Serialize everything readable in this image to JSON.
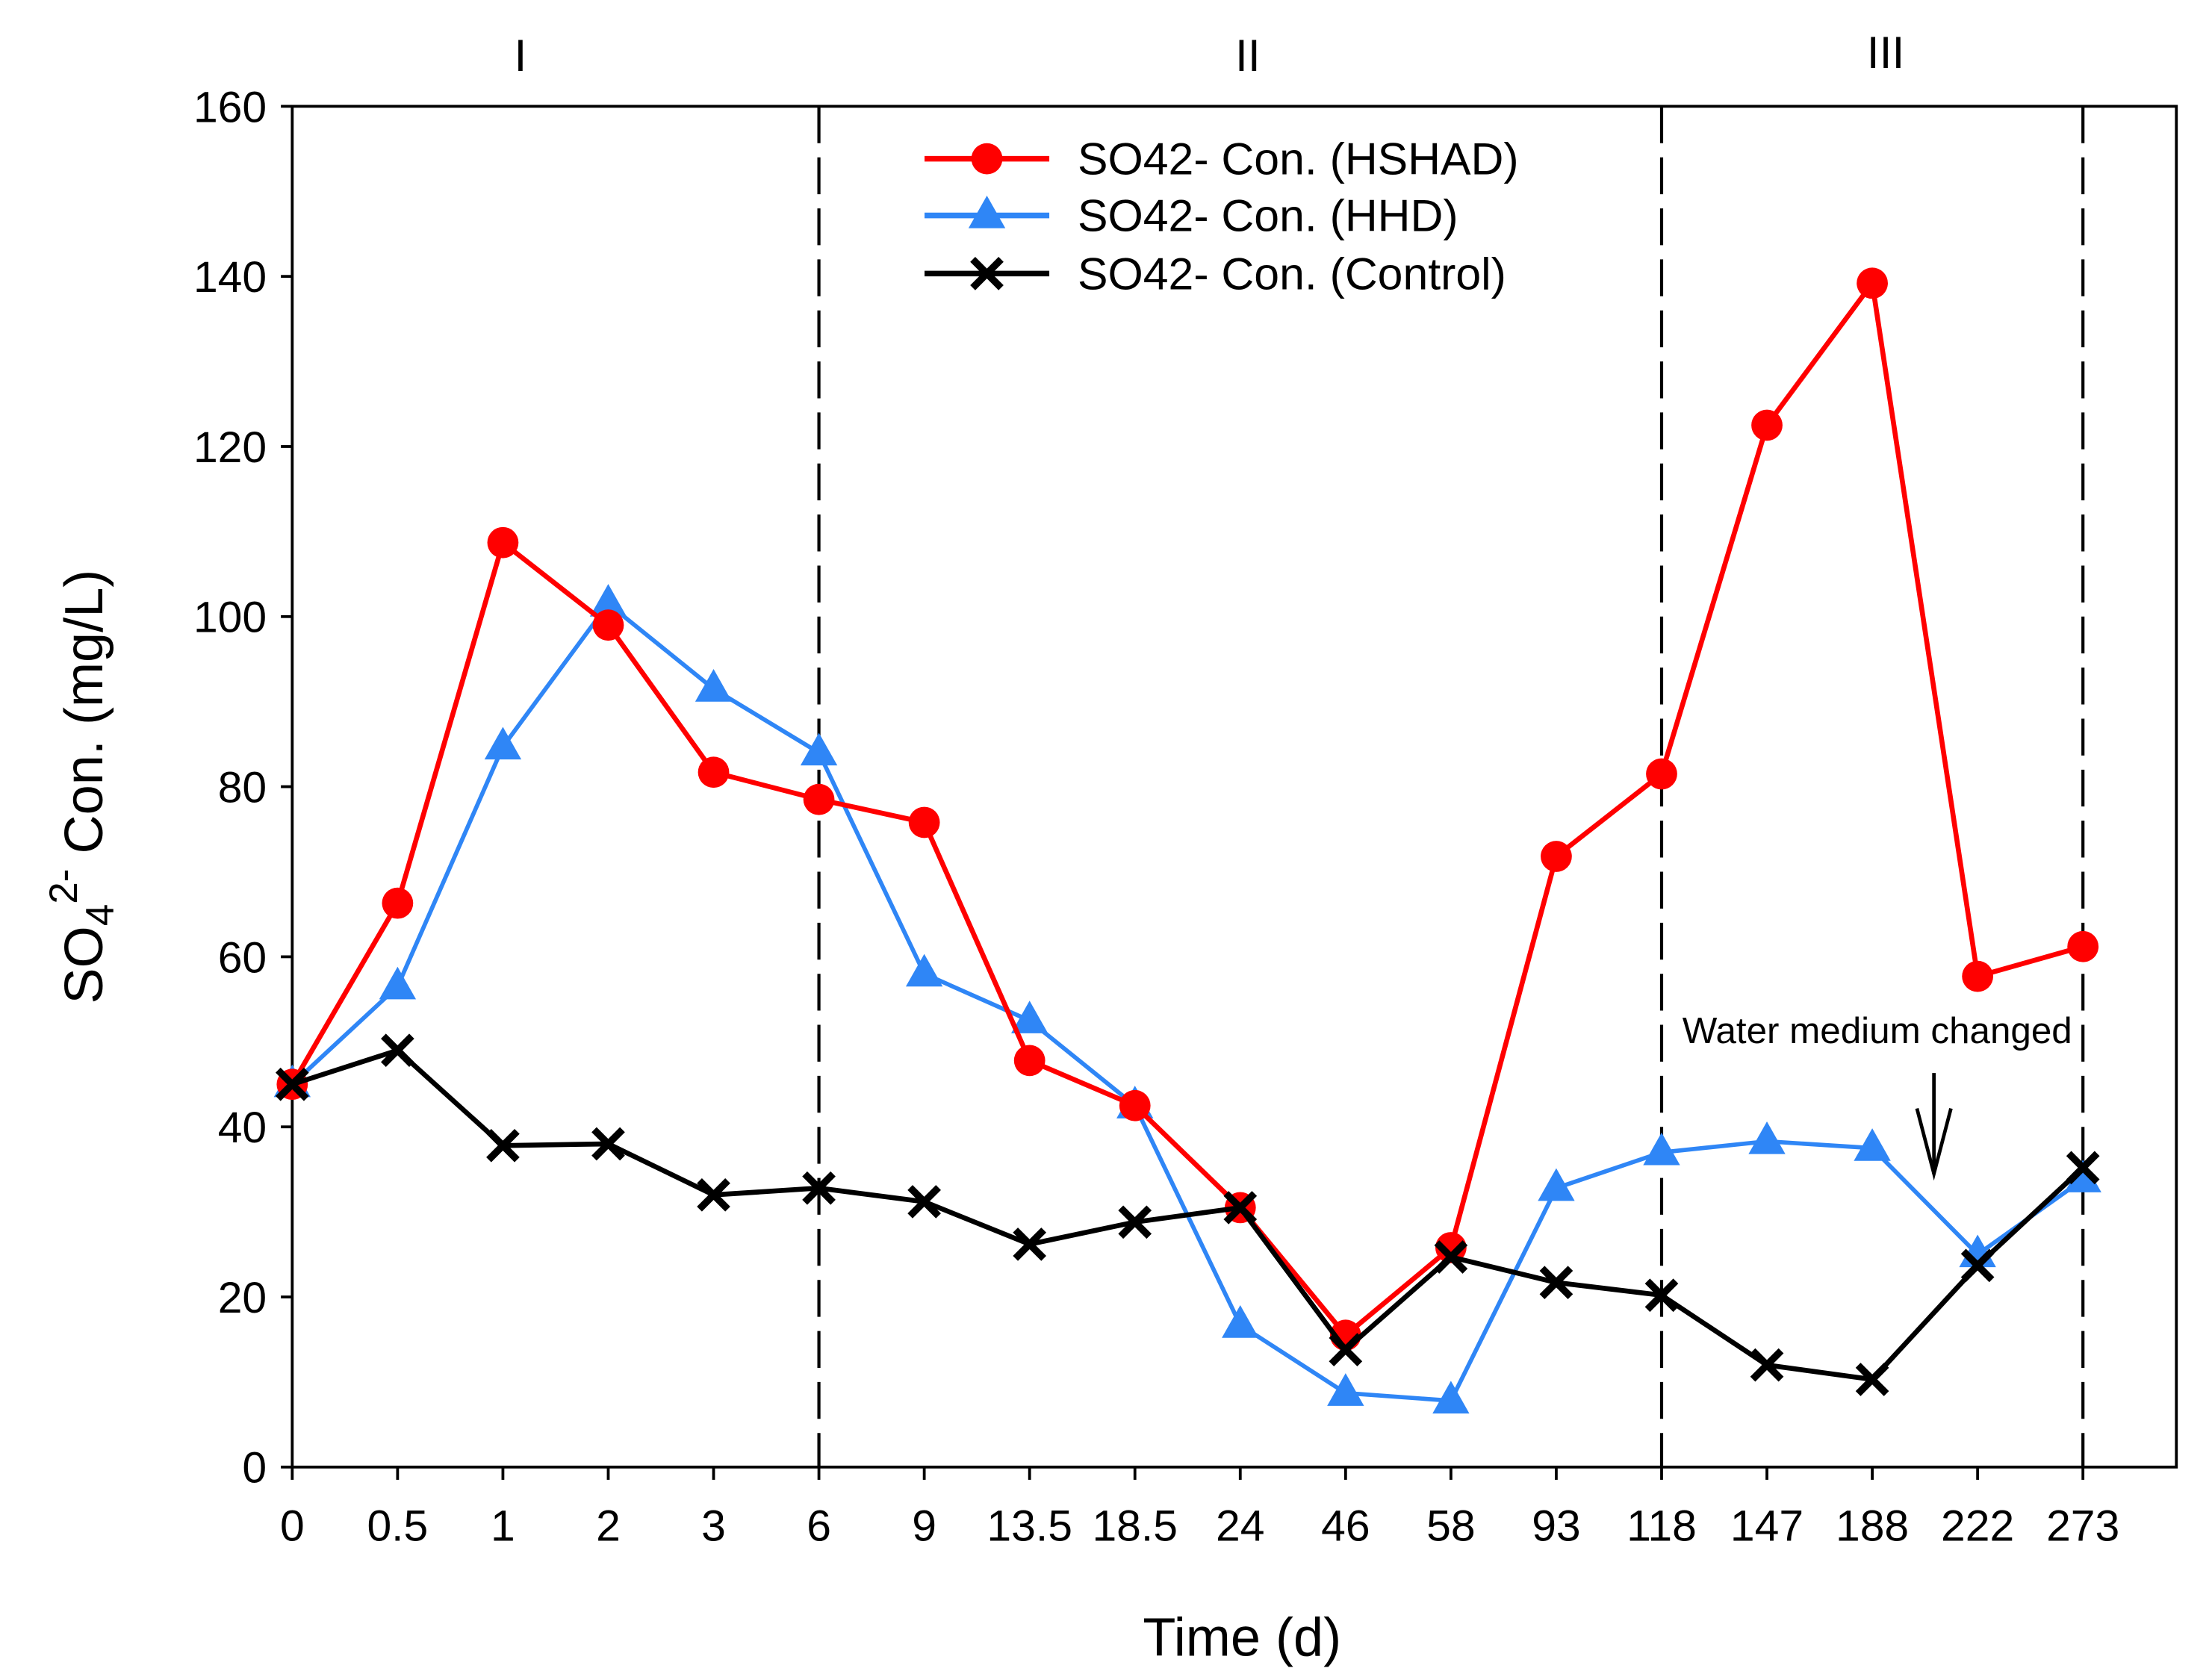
{
  "chart_data": {
    "type": "line",
    "title": "",
    "xlabel": "Time (d)",
    "ylabel": {
      "main": "SO",
      "sub": "4",
      "sup": "2-",
      "rest": " Con. (mg/L)"
    },
    "ylim": [
      0,
      160
    ],
    "yticks": [
      "0",
      "20",
      "40",
      "60",
      "80",
      "100",
      "120",
      "140",
      "160"
    ],
    "categories": [
      "0",
      "0.5",
      "1",
      "2",
      "3",
      "6",
      "9",
      "13.5",
      "18.5",
      "24",
      "46",
      "58",
      "93",
      "118",
      "147",
      "188",
      "222",
      "273"
    ],
    "grid": false,
    "legend_position": "top-center",
    "series": [
      {
        "name": "SO42- Con. (HSHAD)",
        "color": "#ff0000",
        "marker": "circle",
        "values": [
          45,
          66.3,
          108.7,
          99,
          81.7,
          78.5,
          75.8,
          47.8,
          42.5,
          30.5,
          15.5,
          25.8,
          71.8,
          81.5,
          122.5,
          139.2,
          57.7,
          61.2
        ]
      },
      {
        "name": "SO42- Con. (HHD)",
        "color": "#2f86f6",
        "marker": "triangle",
        "values": [
          45,
          56.5,
          84.7,
          101.5,
          91.5,
          84,
          58,
          52.5,
          42.5,
          16.7,
          8.7,
          7.8,
          32.8,
          37,
          38.3,
          37.5,
          25,
          33.8
        ]
      },
      {
        "name": "SO42- Con. (Control)",
        "color": "#000000",
        "marker": "x",
        "values": [
          45,
          49,
          37.8,
          38,
          32,
          32.8,
          31.2,
          26.2,
          28.8,
          30.5,
          13.8,
          24.7,
          21.7,
          20.2,
          12,
          10.3,
          23.7,
          35.2
        ]
      }
    ],
    "phase_dividers_at": [
      "6",
      "118",
      "273"
    ],
    "regions": [
      {
        "label": "I"
      },
      {
        "label": "II"
      },
      {
        "label": "III"
      }
    ],
    "annotations": [
      {
        "text": "Water medium changed",
        "arrow_at_between": [
          "188",
          "222"
        ]
      }
    ]
  }
}
